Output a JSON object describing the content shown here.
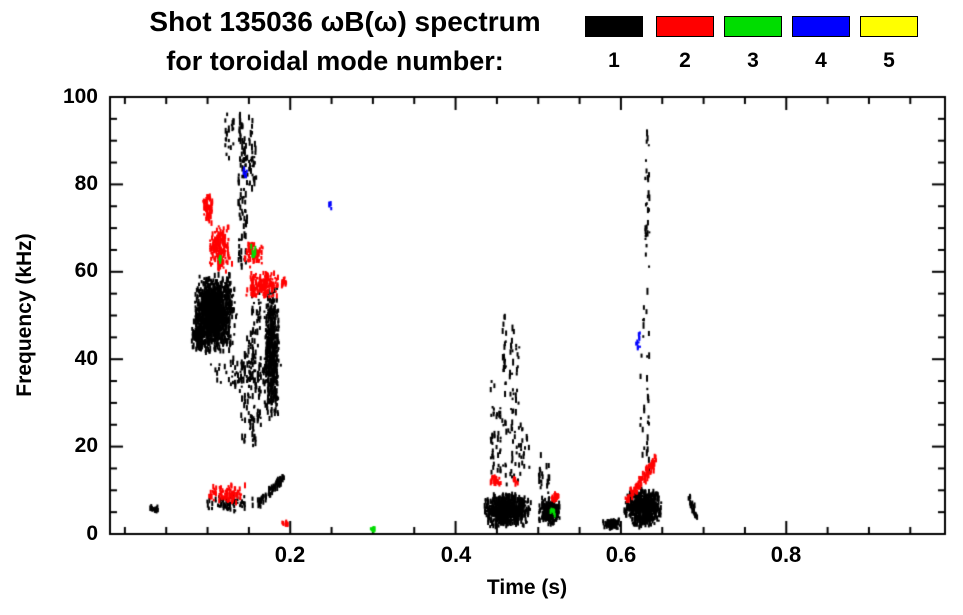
{
  "header": {
    "title_line1": "Shot 135036 ωB(ω) spectrum",
    "title_line2": "for toroidal mode number:"
  },
  "legend": {
    "items": [
      {
        "label": "1",
        "color": "#000000"
      },
      {
        "label": "2",
        "color": "#ff0000"
      },
      {
        "label": "3",
        "color": "#00dd00"
      },
      {
        "label": "4",
        "color": "#0000ff"
      },
      {
        "label": "5",
        "color": "#ffff00"
      }
    ]
  },
  "chart_data": {
    "type": "scatter",
    "title": "Shot 135036 ωB(ω) spectrum for toroidal mode number: 1 2 3 4 5",
    "xlabel": "Time (s)",
    "ylabel": "Frequency (kHz)",
    "xlim": [
      -0.018,
      0.992
    ],
    "ylim": [
      0,
      100
    ],
    "xticks": [
      0.2,
      0.4,
      0.6,
      0.8
    ],
    "xtick_labels": [
      "0.2",
      "0.4",
      "0.6",
      "0.8"
    ],
    "x_minor_step": 0.05,
    "yticks": [
      0,
      20,
      40,
      60,
      80,
      100
    ],
    "ytick_labels": [
      "0",
      "20",
      "40",
      "60",
      "80",
      "100"
    ],
    "y_minor_step": 5,
    "grid": false,
    "legend_position": "top-right",
    "series": [
      {
        "name": "1",
        "color": "#000000",
        "clusters": [
          {
            "type": "blob",
            "t": [
              0.03,
              0.044
            ],
            "f": [
              5,
              7
            ],
            "n": 14
          },
          {
            "type": "blob",
            "t": [
              0.082,
              0.136
            ],
            "f": [
              41,
              60
            ],
            "n": 1000
          },
          {
            "type": "blob",
            "t": [
              0.086,
              0.12
            ],
            "f": [
              44,
              56
            ],
            "n": 400
          },
          {
            "type": "blob",
            "t": [
              0.08,
              0.1
            ],
            "f": [
              42,
              48
            ],
            "n": 150
          },
          {
            "type": "blob",
            "t": [
              0.168,
              0.187
            ],
            "f": [
              26,
              57
            ],
            "n": 500
          },
          {
            "type": "blob",
            "t": [
              0.1,
              0.19
            ],
            "f": [
              32,
              42
            ],
            "n": 90
          },
          {
            "type": "streak",
            "t": 0.14,
            "f": [
              60,
              97
            ],
            "n": 55
          },
          {
            "type": "streak",
            "t": 0.146,
            "f": [
              62,
              92
            ],
            "n": 40
          },
          {
            "type": "streak",
            "t": 0.152,
            "f": [
              78,
              96
            ],
            "n": 22
          },
          {
            "type": "streak",
            "t": 0.157,
            "f": [
              80,
              90
            ],
            "n": 12
          },
          {
            "type": "streak",
            "t": 0.124,
            "f": [
              85,
              97
            ],
            "n": 14
          },
          {
            "type": "streak",
            "t": 0.13,
            "f": [
              88,
              96
            ],
            "n": 8
          },
          {
            "type": "streak",
            "t": 0.143,
            "f": [
              21,
              42
            ],
            "n": 26
          },
          {
            "type": "streak",
            "t": 0.15,
            "f": [
              24,
              46
            ],
            "n": 28
          },
          {
            "type": "streak",
            "t": 0.156,
            "f": [
              20,
              58
            ],
            "n": 45
          },
          {
            "type": "streak",
            "t": 0.162,
            "f": [
              24,
              56
            ],
            "n": 38
          },
          {
            "type": "blob",
            "t": [
              0.098,
              0.158
            ],
            "f": [
              5,
              9
            ],
            "n": 70
          },
          {
            "type": "line",
            "p1": [
              0.162,
              7
            ],
            "p2": [
              0.193,
              13
            ],
            "jitter": 0.8,
            "n": 70
          },
          {
            "type": "streak",
            "t": 0.445,
            "f": [
              10,
              35
            ],
            "n": 24
          },
          {
            "type": "streak",
            "t": 0.452,
            "f": [
              13,
              30
            ],
            "n": 18
          },
          {
            "type": "streak",
            "t": 0.459,
            "f": [
              15,
              50
            ],
            "n": 28
          },
          {
            "type": "streak",
            "t": 0.468,
            "f": [
              18,
              48
            ],
            "n": 22
          },
          {
            "type": "streak",
            "t": 0.475,
            "f": [
              24,
              44
            ],
            "n": 13
          },
          {
            "type": "blob",
            "t": [
              0.432,
              0.492
            ],
            "f": [
              1.5,
              9.5
            ],
            "n": 700
          },
          {
            "type": "blob",
            "t": [
              0.5,
              0.527
            ],
            "f": [
              2,
              8.5
            ],
            "n": 260
          },
          {
            "type": "streak",
            "t": 0.503,
            "f": [
              9,
              20
            ],
            "n": 14
          },
          {
            "type": "streak",
            "t": 0.511,
            "f": [
              9,
              16
            ],
            "n": 9
          },
          {
            "type": "blob",
            "t": [
              0.458,
              0.492
            ],
            "f": [
              10,
              26
            ],
            "n": 40
          },
          {
            "type": "blob",
            "t": [
              0.578,
              0.6
            ],
            "f": [
              1,
              3.5
            ],
            "n": 70
          },
          {
            "type": "blob",
            "t": [
              0.603,
              0.649
            ],
            "f": [
              1.5,
              10.5
            ],
            "n": 600
          },
          {
            "type": "streak",
            "t": 0.632,
            "f": [
              14,
              97
            ],
            "n": 50
          },
          {
            "type": "streak",
            "t": 0.626,
            "f": [
              18,
              55
            ],
            "n": 14
          },
          {
            "type": "line",
            "p1": [
              0.683,
              8.5
            ],
            "p2": [
              0.691,
              4
            ],
            "jitter": 0.6,
            "n": 30
          }
        ]
      },
      {
        "name": "2",
        "color": "#ff0000",
        "clusters": [
          {
            "type": "blob",
            "t": [
              0.094,
              0.107
            ],
            "f": [
              71,
              78
            ],
            "n": 70
          },
          {
            "type": "blob",
            "t": [
              0.101,
              0.13
            ],
            "f": [
              60,
              71
            ],
            "n": 170
          },
          {
            "type": "blob",
            "t": [
              0.143,
              0.17
            ],
            "f": [
              61,
              67
            ],
            "n": 70
          },
          {
            "type": "blob",
            "t": [
              0.147,
              0.187
            ],
            "f": [
              54,
              60
            ],
            "n": 180
          },
          {
            "type": "blob",
            "t": [
              0.188,
              0.197
            ],
            "f": [
              56,
              59
            ],
            "n": 18
          },
          {
            "type": "blob",
            "t": [
              0.098,
              0.15
            ],
            "f": [
              7,
              11.5
            ],
            "n": 80
          },
          {
            "type": "blob",
            "t": [
              0.19,
              0.2
            ],
            "f": [
              1.5,
              3
            ],
            "n": 10
          },
          {
            "type": "blob",
            "t": [
              0.44,
              0.456
            ],
            "f": [
              11,
              13.5
            ],
            "n": 26
          },
          {
            "type": "blob",
            "t": [
              0.468,
              0.476
            ],
            "f": [
              11,
              13
            ],
            "n": 10
          },
          {
            "type": "blob",
            "t": [
              0.514,
              0.526
            ],
            "f": [
              7.5,
              9.5
            ],
            "n": 16
          },
          {
            "type": "line",
            "p1": [
              0.612,
              9
            ],
            "p2": [
              0.641,
              16.5
            ],
            "jitter": 1.5,
            "n": 80
          },
          {
            "type": "blob",
            "t": [
              0.604,
              0.612
            ],
            "f": [
              7.5,
              9
            ],
            "n": 10
          }
        ]
      },
      {
        "name": "3",
        "color": "#00dd00",
        "clusters": [
          {
            "type": "blob",
            "t": [
              0.152,
              0.159
            ],
            "f": [
              63,
              66
            ],
            "n": 10
          },
          {
            "type": "blob",
            "t": [
              0.112,
              0.117
            ],
            "f": [
              62,
              64
            ],
            "n": 5
          },
          {
            "type": "blob",
            "t": [
              0.296,
              0.305
            ],
            "f": [
              0.5,
              2
            ],
            "n": 9
          },
          {
            "type": "blob",
            "t": [
              0.514,
              0.522
            ],
            "f": [
              4,
              6.5
            ],
            "n": 9
          }
        ]
      },
      {
        "name": "4",
        "color": "#0000ff",
        "clusters": [
          {
            "type": "blob",
            "t": [
              0.142,
              0.148
            ],
            "f": [
              81,
              84.5
            ],
            "n": 8
          },
          {
            "type": "blob",
            "t": [
              0.247,
              0.252
            ],
            "f": [
              74,
              76
            ],
            "n": 4
          },
          {
            "type": "blob",
            "t": [
              0.617,
              0.624
            ],
            "f": [
              42,
              46
            ],
            "n": 10
          }
        ]
      },
      {
        "name": "5",
        "color": "#ffff00",
        "clusters": []
      }
    ]
  }
}
